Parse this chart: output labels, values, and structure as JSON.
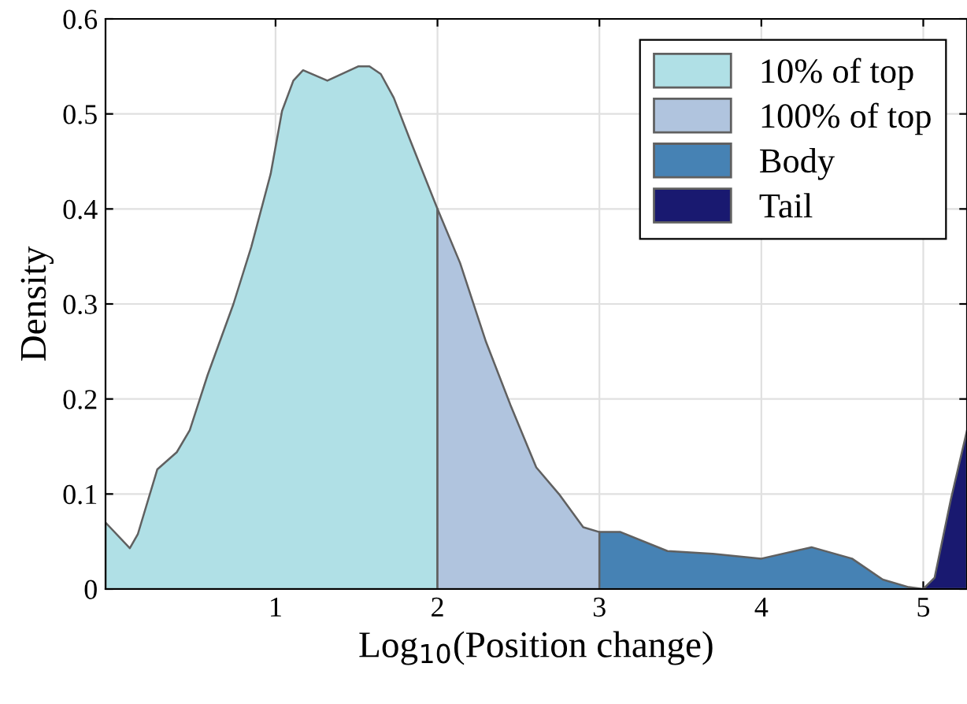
{
  "chart_data": {
    "type": "area",
    "xlabel": "Log$_{10}$(Position change)",
    "ylabel": "Density",
    "series": [
      {
        "name": "10% of top",
        "color": "#b0e0e6",
        "x": [
          -0.05,
          0.1,
          0.15,
          0.27,
          0.39,
          0.47,
          0.58,
          0.74,
          0.85,
          0.97,
          1.04,
          1.11,
          1.17,
          1.32,
          1.51,
          1.58,
          1.65,
          1.73,
          1.83,
          2.0
        ],
        "values": [
          0.07,
          0.043,
          0.058,
          0.126,
          0.144,
          0.167,
          0.225,
          0.3,
          0.36,
          0.437,
          0.503,
          0.535,
          0.546,
          0.535,
          0.55,
          0.55,
          0.542,
          0.517,
          0.473,
          0.4
        ]
      },
      {
        "name": "100% of top",
        "color": "#b0c4de",
        "x": [
          2.0,
          2.14,
          2.3,
          2.45,
          2.61,
          2.75,
          2.9,
          3.0
        ],
        "values": [
          0.4,
          0.343,
          0.26,
          0.194,
          0.128,
          0.1,
          0.065,
          0.06
        ]
      },
      {
        "name": "Body",
        "color": "#4682b4",
        "x": [
          3.0,
          3.13,
          3.42,
          3.7,
          4.0,
          4.31,
          4.56,
          4.75,
          4.91,
          5.0
        ],
        "values": [
          0.06,
          0.06,
          0.04,
          0.037,
          0.032,
          0.044,
          0.032,
          0.01,
          0.002,
          0.0
        ]
      },
      {
        "name": "Tail",
        "color": "#191970",
        "x": [
          5.0,
          5.07,
          5.17,
          5.27
        ],
        "values": [
          0.0,
          0.012,
          0.094,
          0.167
        ]
      }
    ],
    "xlim": [
      -0.05,
      5.27
    ],
    "xticks": [
      1,
      2,
      3,
      4,
      5
    ],
    "ylim": [
      0,
      0.6
    ],
    "yticks": [
      0,
      0.1,
      0.2,
      0.3,
      0.4,
      0.5,
      0.6
    ],
    "grid": true,
    "legend": "top right"
  }
}
